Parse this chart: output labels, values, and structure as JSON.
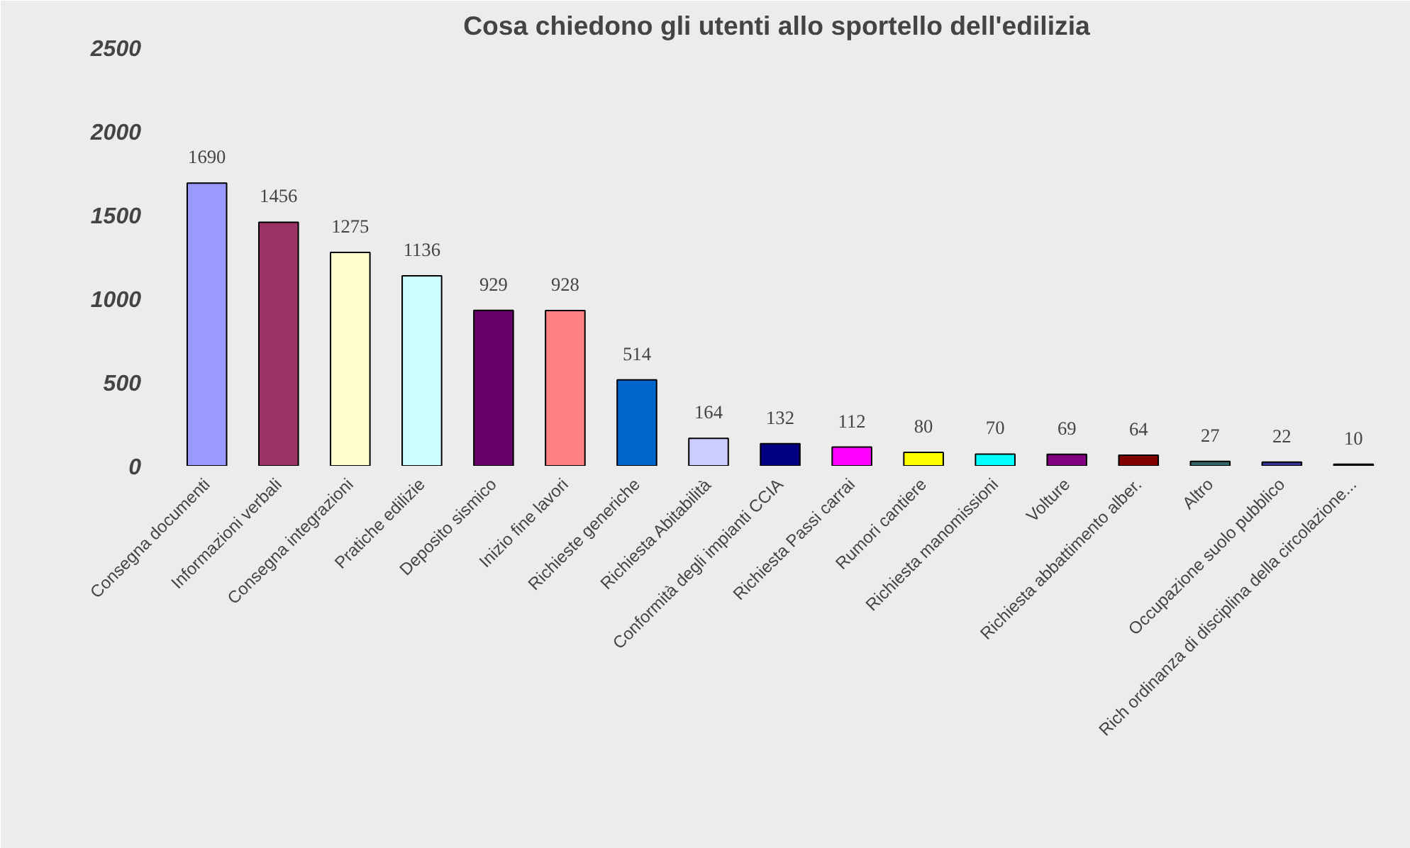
{
  "chart_data": {
    "type": "bar",
    "title": "Cosa chiedono gli utenti allo sportello dell'edilizia",
    "categories": [
      "Consegna documenti",
      "Informazioni verbali",
      "Consegna integrazioni",
      "Pratiche edilizie",
      "Deposito sismico",
      "Inizio fine lavori",
      "Richieste generiche",
      "Richiesta Abitabilità",
      "Conformità degli impianti CCIA",
      "Richiesta Passi carrai",
      "Rumori cantiere",
      "Richiesta manomissioni",
      "Volture",
      "Richiesta abbattimento alber.",
      "Altro",
      "Occupazione suolo pubblico",
      "Rich ordinanza di disciplina della circolazione..."
    ],
    "values": [
      1690,
      1456,
      1275,
      1136,
      929,
      928,
      514,
      164,
      132,
      112,
      80,
      70,
      69,
      64,
      27,
      22,
      10
    ],
    "colors": [
      "#9999ff",
      "#993366",
      "#ffffcc",
      "#ccffff",
      "#660066",
      "#ff8080",
      "#0066cc",
      "#ccccff",
      "#000080",
      "#ff00ff",
      "#ffff00",
      "#00ffff",
      "#800080",
      "#800000",
      "#336666",
      "#333399",
      "#555555"
    ],
    "ylim": [
      0,
      2500
    ],
    "yticks": [
      0,
      500,
      1000,
      1500,
      2000,
      2500
    ],
    "grid": false,
    "data_labels": true
  }
}
